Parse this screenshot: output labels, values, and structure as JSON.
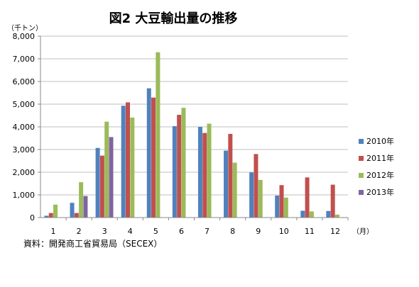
{
  "chart_data": {
    "type": "bar",
    "title": "図2 大豆輸出量の推移",
    "y_unit_label": "（千トン）",
    "x_unit_label": "（月）",
    "source": "資料：開発商工省貿易局（SECEX）",
    "categories": [
      "1",
      "2",
      "3",
      "4",
      "5",
      "6",
      "7",
      "8",
      "9",
      "10",
      "11",
      "12"
    ],
    "ylim": [
      0,
      8000
    ],
    "yticks": [
      "0",
      "1,000",
      "2,000",
      "3,000",
      "4,000",
      "5,000",
      "6,000",
      "7,000",
      "8,000"
    ],
    "ytick_values": [
      0,
      1000,
      2000,
      3000,
      4000,
      5000,
      6000,
      7000,
      8000
    ],
    "grid": true,
    "legend_position": "right",
    "series": [
      {
        "name": "2010年",
        "color": "#4f81bd",
        "values": [
          80,
          650,
          3070,
          4930,
          5700,
          4030,
          4000,
          2950,
          1990,
          970,
          300,
          290
        ]
      },
      {
        "name": "2011年",
        "color": "#c0504d",
        "values": [
          200,
          200,
          2730,
          5080,
          5290,
          4530,
          3730,
          3690,
          2800,
          1430,
          1770,
          1450
        ]
      },
      {
        "name": "2012年",
        "color": "#9bbb59",
        "values": [
          570,
          1560,
          4230,
          4410,
          7290,
          4840,
          4140,
          2420,
          1660,
          880,
          270,
          130
        ]
      },
      {
        "name": "2013年",
        "color": "#8064a2",
        "values": [
          0,
          950,
          3550,
          null,
          null,
          null,
          null,
          null,
          null,
          null,
          null,
          null
        ]
      }
    ]
  }
}
